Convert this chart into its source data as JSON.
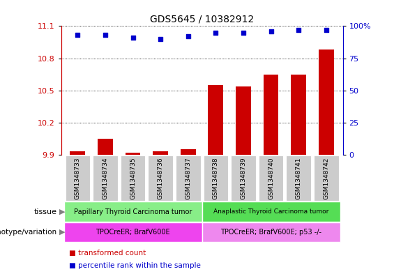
{
  "title": "GDS5645 / 10382912",
  "samples": [
    "GSM1348733",
    "GSM1348734",
    "GSM1348735",
    "GSM1348736",
    "GSM1348737",
    "GSM1348738",
    "GSM1348739",
    "GSM1348740",
    "GSM1348741",
    "GSM1348742"
  ],
  "transformed_count": [
    9.93,
    10.05,
    9.92,
    9.93,
    9.95,
    10.55,
    10.54,
    10.65,
    10.65,
    10.88
  ],
  "percentile_rank": [
    93,
    93,
    91,
    90,
    92,
    95,
    95,
    96,
    97,
    97
  ],
  "ylim_left": [
    9.9,
    11.1
  ],
  "ylim_right": [
    0,
    100
  ],
  "yticks_left": [
    9.9,
    10.2,
    10.5,
    10.8,
    11.1
  ],
  "yticks_right": [
    0,
    25,
    50,
    75,
    100
  ],
  "bar_color": "#cc0000",
  "dot_color": "#0000cc",
  "grid_color": "#000000",
  "xticklabel_bg": "#cccccc",
  "tissue_groups": [
    {
      "label": "Papillary Thyroid Carcinoma tumor",
      "start": 0,
      "end": 5,
      "color": "#88ee88"
    },
    {
      "label": "Anaplastic Thyroid Carcinoma tumor",
      "start": 5,
      "end": 10,
      "color": "#55dd55"
    }
  ],
  "genotype_groups": [
    {
      "label": "TPOCreER; BrafV600E",
      "start": 0,
      "end": 5,
      "color": "#ee44ee"
    },
    {
      "label": "TPOCreER; BrafV600E; p53 -/-",
      "start": 5,
      "end": 10,
      "color": "#ee88ee"
    }
  ],
  "legend_items": [
    {
      "color": "#cc0000",
      "label": "transformed count"
    },
    {
      "color": "#0000cc",
      "label": "percentile rank within the sample"
    }
  ],
  "tissue_label": "tissue",
  "genotype_label": "genotype/variation",
  "bar_bottom": 9.9
}
